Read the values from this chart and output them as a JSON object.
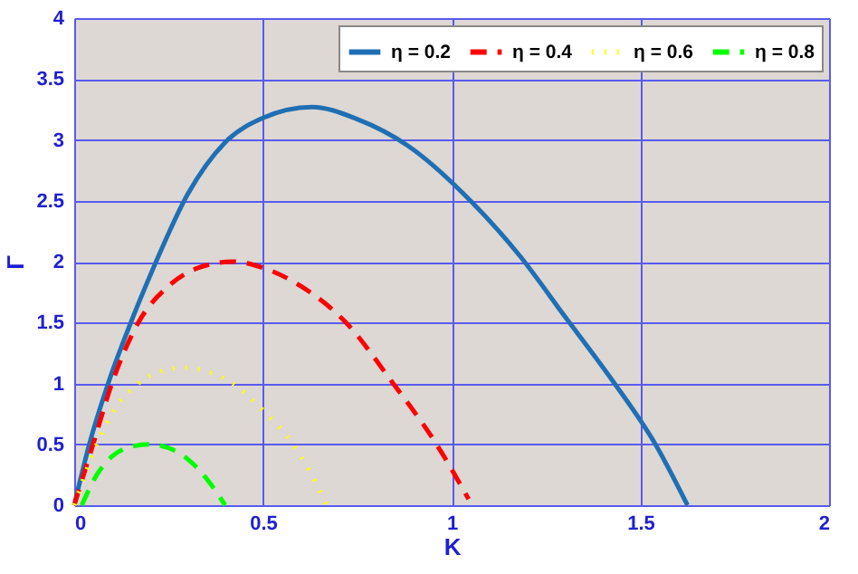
{
  "chart_data": {
    "type": "line",
    "xlabel": "K",
    "ylabel": "Γ",
    "xlim": [
      0,
      2
    ],
    "xticks": [
      0,
      0.5,
      1,
      1.5,
      2
    ],
    "ylim": [
      0,
      4
    ],
    "yticks": [
      0,
      0.5,
      1,
      1.5,
      2,
      2.5,
      3,
      3.5,
      4
    ],
    "grid": true,
    "legend": "top right",
    "marker": "none",
    "series": [
      {
        "name": "η = 0.2",
        "color": "#1f6fb4",
        "line_style": "solid",
        "x": [
          0,
          0.04,
          0.09,
          0.15,
          0.21,
          0.3,
          0.4,
          0.5,
          0.63,
          0.75,
          0.885,
          1.05,
          1.18,
          1.3,
          1.42,
          1.54,
          1.625
        ],
        "values": [
          0,
          0.5,
          1.0,
          1.5,
          1.95,
          2.55,
          2.98,
          3.18,
          3.27,
          3.17,
          2.95,
          2.5,
          2.05,
          1.55,
          1.05,
          0.5,
          0
        ]
      },
      {
        "name": "η = 0.4",
        "color": "#ff0000",
        "line_style": "dashed",
        "x": [
          0,
          0.05,
          0.1,
          0.17,
          0.25,
          0.33,
          0.42,
          0.5,
          0.6,
          0.72,
          0.845,
          0.96,
          1.045
        ],
        "values": [
          0,
          0.5,
          1.0,
          1.5,
          1.8,
          1.95,
          2.0,
          1.95,
          1.8,
          1.5,
          1.0,
          0.5,
          0.05
        ]
      },
      {
        "name": "η = 0.6",
        "color": "#ffff00",
        "line_style": "dotted",
        "x": [
          0,
          0.06,
          0.11,
          0.17,
          0.23,
          0.29,
          0.35,
          0.42,
          0.5,
          0.58,
          0.67
        ],
        "values": [
          0,
          0.5,
          0.8,
          1.0,
          1.1,
          1.13,
          1.1,
          1.0,
          0.78,
          0.5,
          0
        ]
      },
      {
        "name": "η = 0.8",
        "color": "#00ff00",
        "line_style": "dashed",
        "x": [
          0.02,
          0.06,
          0.1,
          0.15,
          0.2,
          0.25,
          0.3,
          0.35,
          0.4
        ],
        "values": [
          0,
          0.25,
          0.4,
          0.48,
          0.5,
          0.47,
          0.38,
          0.22,
          0
        ]
      }
    ]
  }
}
